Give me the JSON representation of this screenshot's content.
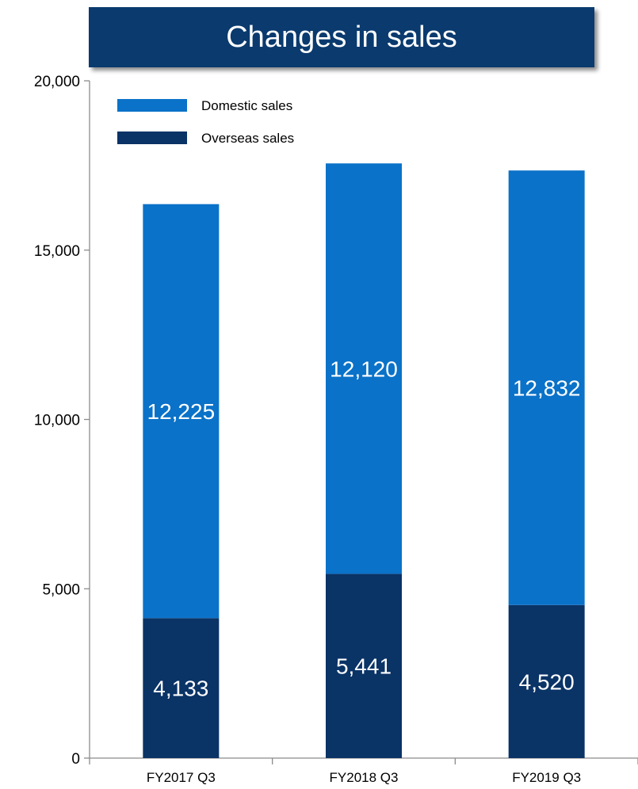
{
  "title": "Changes in sales",
  "chart_data": {
    "type": "bar",
    "stacked": true,
    "categories": [
      "FY2017 Q3",
      "FY2018 Q3",
      "FY2019 Q3"
    ],
    "series": [
      {
        "name": "Overseas sales",
        "values": [
          4133,
          5441,
          4520
        ],
        "labels": [
          "4,133",
          "5,441",
          "4,520"
        ],
        "color": "#0a3366"
      },
      {
        "name": "Domestic sales",
        "values": [
          12225,
          12120,
          12832
        ],
        "labels": [
          "12,225",
          "12,120",
          "12,832"
        ],
        "color": "#0a72c8"
      }
    ],
    "ylim": [
      0,
      20000
    ],
    "yticks": [
      0,
      5000,
      10000,
      15000,
      20000
    ],
    "ytick_labels": [
      "0",
      "5,000",
      "10,000",
      "15,000",
      "20,000"
    ],
    "legend_order": [
      "Domestic sales",
      "Overseas sales"
    ],
    "legend_position": "top-left",
    "grid": false,
    "axis_color": "#8c8c8c",
    "title_background": "#0a3a6e"
  }
}
